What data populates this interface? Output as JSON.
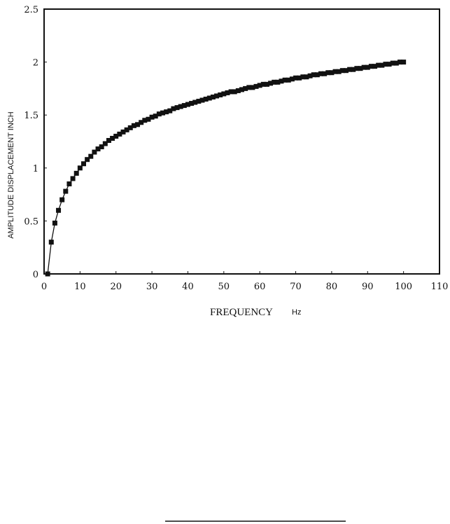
{
  "chart_data": {
    "type": "line",
    "title": "",
    "xlabel": "FREQUENCY",
    "xlabel_unit": "Hz",
    "ylabel": "AMPLITUDE DISPLACEMENT INCH",
    "xlim": [
      0,
      110
    ],
    "ylim": [
      0,
      2.5
    ],
    "xticks": [
      "0",
      "10",
      "20",
      "30",
      "40",
      "50",
      "60",
      "70",
      "80",
      "90",
      "100",
      "110"
    ],
    "yticks": [
      "0",
      "0.5",
      "1",
      "1.5",
      "2",
      "2.5"
    ],
    "grid": false,
    "legend": "none",
    "marker": "square",
    "color": "#111111",
    "series": [
      {
        "x": [
          1,
          2,
          3,
          4,
          5,
          6,
          7,
          8,
          9,
          10,
          11,
          12,
          13,
          14,
          15,
          16,
          17,
          18,
          19,
          20,
          21,
          22,
          23,
          24,
          25,
          26,
          27,
          28,
          29,
          30,
          31,
          32,
          33,
          34,
          35,
          36,
          37,
          38,
          39,
          40,
          41,
          42,
          43,
          44,
          45,
          46,
          47,
          48,
          49,
          50,
          51,
          52,
          53,
          54,
          55,
          56,
          57,
          58,
          59,
          60,
          61,
          62,
          63,
          64,
          65,
          66,
          67,
          68,
          69,
          70,
          71,
          72,
          73,
          74,
          75,
          76,
          77,
          78,
          79,
          80,
          81,
          82,
          83,
          84,
          85,
          86,
          87,
          88,
          89,
          90,
          91,
          92,
          93,
          94,
          95,
          96,
          97,
          98,
          99,
          100
        ],
        "y": [
          0,
          0.3,
          0.48,
          0.6,
          0.7,
          0.78,
          0.85,
          0.9,
          0.95,
          1.0,
          1.04,
          1.08,
          1.11,
          1.15,
          1.18,
          1.2,
          1.23,
          1.26,
          1.28,
          1.3,
          1.32,
          1.34,
          1.36,
          1.38,
          1.4,
          1.41,
          1.43,
          1.45,
          1.46,
          1.48,
          1.49,
          1.51,
          1.52,
          1.53,
          1.54,
          1.56,
          1.57,
          1.58,
          1.59,
          1.6,
          1.61,
          1.62,
          1.63,
          1.64,
          1.65,
          1.66,
          1.67,
          1.68,
          1.69,
          1.7,
          1.71,
          1.72,
          1.72,
          1.73,
          1.74,
          1.75,
          1.76,
          1.76,
          1.77,
          1.78,
          1.79,
          1.79,
          1.8,
          1.81,
          1.81,
          1.82,
          1.83,
          1.83,
          1.84,
          1.85,
          1.85,
          1.86,
          1.86,
          1.87,
          1.88,
          1.88,
          1.89,
          1.89,
          1.9,
          1.9,
          1.91,
          1.91,
          1.92,
          1.92,
          1.93,
          1.93,
          1.94,
          1.94,
          1.95,
          1.95,
          1.96,
          1.96,
          1.97,
          1.97,
          1.98,
          1.98,
          1.99,
          1.99,
          2.0,
          2.0
        ]
      }
    ]
  }
}
